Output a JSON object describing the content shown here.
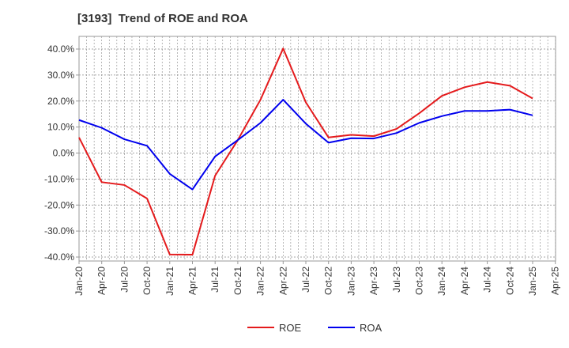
{
  "chart_data": {
    "type": "line",
    "title": "[3193]  Trend of ROE and ROA",
    "xlabel": "",
    "ylabel": "",
    "x": [
      "Jan-20",
      "Apr-20",
      "Jul-20",
      "Oct-20",
      "Jan-21",
      "Apr-21",
      "Jul-21",
      "Oct-21",
      "Jan-22",
      "Apr-22",
      "Jul-22",
      "Oct-22",
      "Jan-23",
      "Apr-23",
      "Jul-23",
      "Oct-23",
      "Jan-24",
      "Apr-24",
      "Jul-24",
      "Oct-24",
      "Jan-25",
      "Apr-25"
    ],
    "ylim": [
      -40,
      40
    ],
    "yticks": [
      40,
      30,
      20,
      10,
      0,
      -10,
      -20,
      -30,
      -40
    ],
    "ytick_labels": [
      "40.0%",
      "30.0%",
      "20.0%",
      "10.0%",
      "0.0%",
      "-10.0%",
      "-20.0%",
      "-30.0%",
      "-40.0%"
    ],
    "grid": true,
    "legend_position": "bottom-center",
    "series": [
      {
        "name": "ROE",
        "color": "#e41a1c",
        "values": [
          6.0,
          -11.2,
          -12.3,
          -17.5,
          -39.0,
          -39.1,
          -8.7,
          5.0,
          20.5,
          40.2,
          19.5,
          6.0,
          7.0,
          6.5,
          9.3,
          15.3,
          22.0,
          25.3,
          27.3,
          25.9,
          21.0,
          null
        ]
      },
      {
        "name": "ROA",
        "color": "#0000ee",
        "values": [
          12.7,
          9.7,
          5.3,
          2.8,
          -8.0,
          -14.0,
          -1.3,
          5.0,
          11.6,
          20.5,
          11.3,
          4.0,
          5.7,
          5.6,
          7.7,
          11.6,
          14.2,
          16.2,
          16.2,
          16.7,
          14.5,
          null
        ]
      }
    ]
  }
}
